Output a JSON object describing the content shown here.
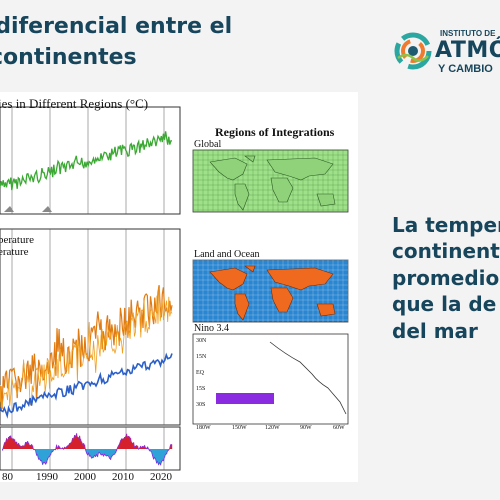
{
  "slide": {
    "title_line1": "to diferencial entre el",
    "title_line2": "continentes",
    "right_text": [
      "La temper",
      "continente",
      "promedio.",
      "que la de l",
      "del mar"
    ]
  },
  "logo": {
    "line1": "INSTITUTO DE",
    "line2": "ATMÓ",
    "line3": "Y CAMBIO",
    "colors": [
      "#2aa7a1",
      "#f07b2e",
      "#1f5b70",
      "#8bc34a"
    ]
  },
  "figure": {
    "left_title": "ies in Different Regions (°C)",
    "legend_line1": "perature",
    "legend_line2": "erature",
    "x_ticks": [
      "80",
      "1990",
      "2000",
      "2010",
      "2020"
    ],
    "regions_title": "Regions of Integrations",
    "maps": [
      {
        "label": "Global",
        "y_ticks": [],
        "x_ticks": []
      },
      {
        "label": "Land and Ocean",
        "y_ticks": [],
        "x_ticks": []
      },
      {
        "label": "Nino 3.4",
        "y_ticks": [
          "30N",
          "15N",
          "EQ",
          "15S",
          "30S"
        ],
        "x_ticks": [
          "180W",
          "150W",
          "120W",
          "90W",
          "60W"
        ]
      }
    ],
    "colors": {
      "global": "#3aa832",
      "land": "#e07a12",
      "ocean": "#2b5fc9",
      "nino": "#8a2be2",
      "enso_pos": "#d4212b",
      "enso_neg": "#2fa3d8",
      "map_green": "#9fe08a",
      "map_orange": "#ef6a1e",
      "map_blue": "#2a86d1"
    }
  }
}
